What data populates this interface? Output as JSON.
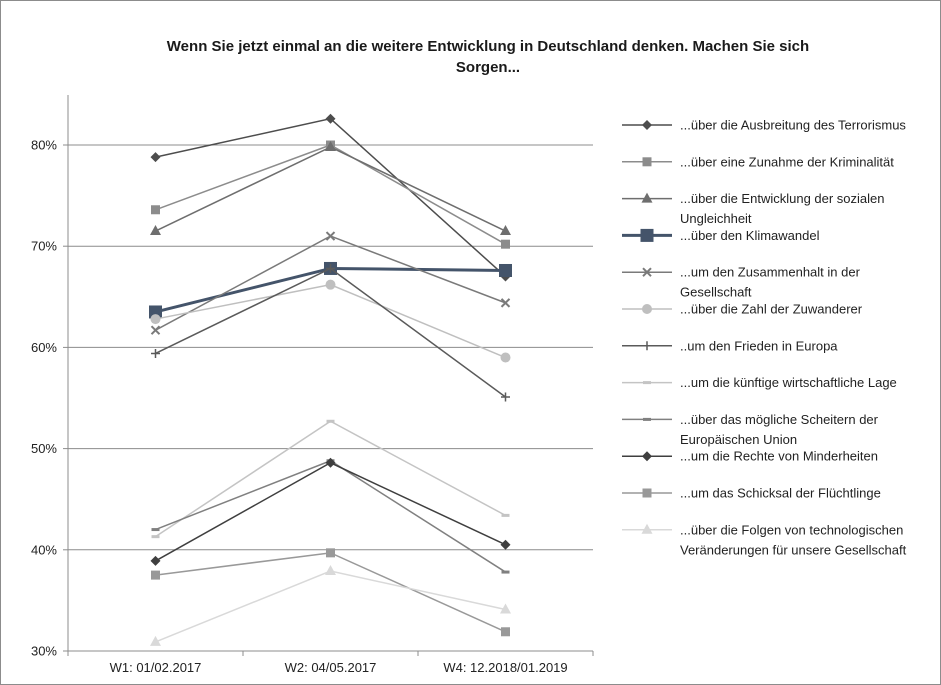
{
  "chart_data": {
    "type": "line",
    "title_lines": [
      "Wenn Sie jetzt einmal an die weitere Entwicklung in Deutschland denken. Machen Sie sich",
      "Sorgen..."
    ],
    "categories": [
      "W1: 01/02.2017",
      "W2: 04/05.2017",
      "W4: 12.2018/01.2019"
    ],
    "ylim": [
      30,
      80
    ],
    "yticks": [
      30,
      40,
      50,
      60,
      70,
      80
    ],
    "ytick_labels": [
      "30%",
      "40%",
      "50%",
      "60%",
      "70%",
      "80%"
    ],
    "grid": true,
    "legend_position": "right",
    "series": [
      {
        "name": "...über die Ausbreitung des Terrorismus",
        "name_lines": [
          "...über die Ausbreitung des Terrorismus"
        ],
        "values": [
          78.8,
          82.6,
          67.0
        ],
        "color": "#4d4d4d",
        "marker": "diamond",
        "width": 1.5
      },
      {
        "name": "...über eine Zunahme der Kriminalität",
        "name_lines": [
          "...über eine Zunahme der Kriminalität"
        ],
        "values": [
          73.6,
          80.0,
          70.2
        ],
        "color": "#8c8c8c",
        "marker": "square",
        "width": 1.5
      },
      {
        "name": "...über die Entwicklung der sozialen Ungleichheit",
        "name_lines": [
          "...über die Entwicklung der sozialen",
          "Ungleichheit"
        ],
        "values": [
          71.5,
          79.8,
          71.5
        ],
        "color": "#6e6e6e",
        "marker": "triangle",
        "width": 1.5
      },
      {
        "name": "...über den Klimawandel",
        "name_lines": [
          "...über den Klimawandel"
        ],
        "values": [
          63.5,
          67.8,
          67.6
        ],
        "color": "#44546a",
        "marker": "square-big",
        "width": 3
      },
      {
        "name": "...um den Zusammenhalt in der Gesellschaft",
        "name_lines": [
          "...um den Zusammenhalt in der",
          "Gesellschaft"
        ],
        "values": [
          61.7,
          71.0,
          64.4
        ],
        "color": "#7a7a7a",
        "marker": "x",
        "width": 1.5
      },
      {
        "name": "...über die Zahl der Zuwanderer",
        "name_lines": [
          "...über die Zahl der Zuwanderer"
        ],
        "values": [
          62.8,
          66.2,
          59.0
        ],
        "color": "#bfbfbf",
        "marker": "circle",
        "width": 1.5
      },
      {
        "name": "..um den Frieden in Europa",
        "name_lines": [
          "..um den Frieden in Europa"
        ],
        "values": [
          59.4,
          67.8,
          55.1
        ],
        "color": "#5a5a5a",
        "marker": "plus",
        "width": 1.5
      },
      {
        "name": "...um die künftige wirtschaftliche Lage",
        "name_lines": [
          "...um die künftige wirtschaftliche Lage"
        ],
        "values": [
          41.3,
          52.7,
          43.4
        ],
        "color": "#c4c4c4",
        "marker": "dash",
        "width": 1.5
      },
      {
        "name": "...über das mögliche Scheitern der Europäischen Union",
        "name_lines": [
          "...über das mögliche Scheitern der",
          "Europäischen Union"
        ],
        "values": [
          42.0,
          48.8,
          37.8
        ],
        "color": "#808080",
        "marker": "dash",
        "width": 1.5
      },
      {
        "name": "...um die Rechte von Minderheiten",
        "name_lines": [
          "...um die Rechte von Minderheiten"
        ],
        "values": [
          38.9,
          48.6,
          40.5
        ],
        "color": "#3f3f3f",
        "marker": "diamond",
        "width": 1.5
      },
      {
        "name": "...um das Schicksal der Flüchtlinge",
        "name_lines": [
          "...um das Schicksal der Flüchtlinge"
        ],
        "values": [
          37.5,
          39.7,
          31.9
        ],
        "color": "#999999",
        "marker": "square",
        "width": 1.5
      },
      {
        "name": "...über die Folgen von technologischen Veränderungen für unsere Gesellschaft",
        "name_lines": [
          "...über die Folgen von technologischen",
          "Veränderungen für unsere Gesellschaft"
        ],
        "values": [
          30.9,
          37.9,
          34.1
        ],
        "color": "#d9d9d9",
        "marker": "triangle",
        "width": 1.5
      }
    ]
  }
}
